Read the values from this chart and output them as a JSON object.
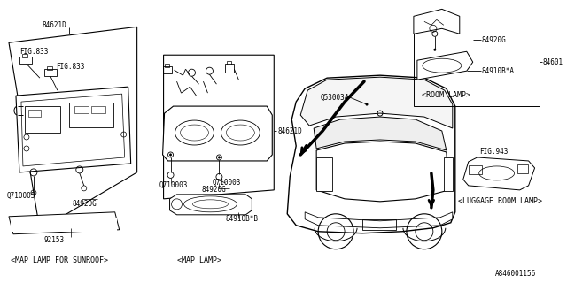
{
  "bg_color": "#ffffff",
  "diagram_id": "A846001156",
  "labels": {
    "map_lamp_sunroof": "<MAP LAMP FOR SUNROOF>",
    "map_lamp": "<MAP LAMP>",
    "room_lamp": "<ROOM LAMP>",
    "luggage_room_lamp": "<LUGGAGE ROOM LAMP>"
  },
  "parts": {
    "84621D": "84621D",
    "FIG833": "FIG.833",
    "Q710005": "Q710005",
    "84920G": "84920G",
    "92153": "92153",
    "84621D_mid": "84621D",
    "Q710003": "Q710003",
    "84910BstarB": "84910B*B",
    "Q530034": "Q530034",
    "84601": "84601",
    "84910BstarA": "84910B*A",
    "FIG943": "FIG.943"
  },
  "font_size": 5.5,
  "label_font_size": 6.0
}
